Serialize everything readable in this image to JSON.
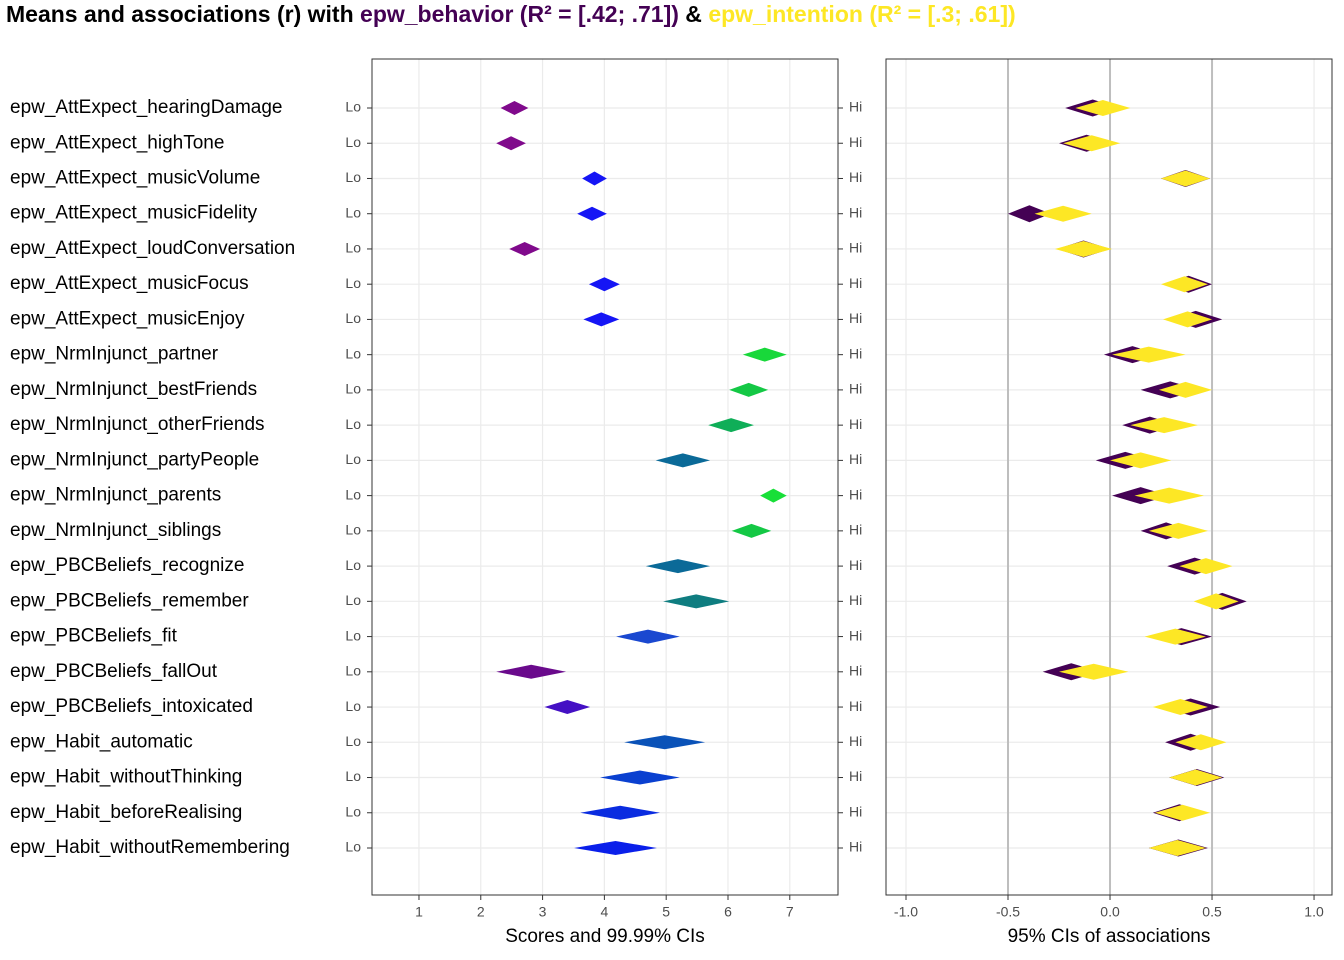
{
  "title_prefix": "Means and associations (r) with ",
  "title_joiner": " & ",
  "chart_data": [
    {
      "type": "diamond",
      "xlabel": "Scores and 99.99% CIs",
      "anchor_labels": [
        "Lo",
        "Hi"
      ],
      "grid": true,
      "categories": [
        "epw_AttExpect_hearingDamage",
        "epw_AttExpect_highTone",
        "epw_AttExpect_musicVolume",
        "epw_AttExpect_musicFidelity",
        "epw_AttExpect_loudConversation",
        "epw_AttExpect_musicFocus",
        "epw_AttExpect_musicEnjoy",
        "epw_NrmInjunct_partner",
        "epw_NrmInjunct_bestFriends",
        "epw_NrmInjunct_otherFriends",
        "epw_NrmInjunct_partyPeople",
        "epw_NrmInjunct_parents",
        "epw_NrmInjunct_siblings",
        "epw_PBCBeliefs_recognize",
        "epw_PBCBeliefs_remember",
        "epw_PBCBeliefs_fit",
        "epw_PBCBeliefs_fallOut",
        "epw_PBCBeliefs_intoxicated",
        "epw_Habit_automatic",
        "epw_Habit_withoutThinking",
        "epw_Habit_beforeRealising",
        "epw_Habit_withoutRemembering"
      ],
      "values": [
        2.54,
        2.49,
        3.85,
        3.8,
        2.7,
        3.99,
        3.95,
        6.6,
        6.34,
        6.05,
        5.27,
        6.73,
        6.37,
        5.19,
        5.48,
        4.71,
        2.81,
        3.39,
        4.96,
        4.58,
        4.25,
        4.17
      ],
      "lower": [
        2.32,
        2.25,
        3.64,
        3.56,
        2.46,
        3.75,
        3.66,
        6.24,
        6.02,
        5.68,
        4.83,
        6.52,
        6.06,
        4.67,
        4.95,
        4.19,
        2.25,
        3.03,
        4.32,
        3.93,
        3.61,
        3.51
      ],
      "upper": [
        2.77,
        2.73,
        4.04,
        4.04,
        2.96,
        4.25,
        4.24,
        6.95,
        6.65,
        6.42,
        5.71,
        6.95,
        6.7,
        5.71,
        6.02,
        5.22,
        3.38,
        3.77,
        5.63,
        5.22,
        4.9,
        4.85
      ],
      "colors": [
        "#800a8c",
        "#800a8c",
        "#1515f5",
        "#1515f5",
        "#800a8c",
        "#1515f5",
        "#1515f5",
        "#18d83a",
        "#14c845",
        "#0fae58",
        "#0b6a98",
        "#18df38",
        "#14c845",
        "#0b6a98",
        "#0f7d80",
        "#1a48d0",
        "#6a0a8c",
        "#4410c4",
        "#0a52b8",
        "#0a40d0",
        "#0a2ce0",
        "#0a1fea"
      ],
      "xlim": [
        0.24,
        7.78
      ],
      "xticks": [
        1,
        2,
        3,
        4,
        5,
        6,
        7
      ]
    },
    {
      "type": "diamond",
      "xlabel": "95% CIs of associations",
      "grid": true,
      "reference_lines": [
        -0.5,
        0,
        0.5
      ],
      "series": [
        {
          "name": "epw_behavior (R² = [.42; .71])",
          "color": "#440154",
          "values": [
            -0.08,
            -0.11,
            0.37,
            -0.4,
            -0.13,
            0.39,
            0.42,
            0.11,
            0.29,
            0.2,
            0.07,
            0.15,
            0.27,
            0.42,
            0.55,
            0.35,
            -0.19,
            0.4,
            0.4,
            0.43,
            0.34,
            0.34
          ],
          "lower": [
            -0.22,
            -0.25,
            0.25,
            -0.5,
            -0.26,
            0.27,
            0.29,
            -0.03,
            0.15,
            0.06,
            -0.07,
            0.01,
            0.15,
            0.28,
            0.43,
            0.2,
            -0.33,
            0.25,
            0.27,
            0.29,
            0.21,
            0.19
          ],
          "upper": [
            0.05,
            0.02,
            0.49,
            -0.29,
            0,
            0.5,
            0.55,
            0.25,
            0.44,
            0.33,
            0.22,
            0.29,
            0.4,
            0.55,
            0.67,
            0.5,
            -0.05,
            0.54,
            0.52,
            0.56,
            0.47,
            0.48
          ]
        },
        {
          "name": "epw_intention (R² = [.3; .61])",
          "color": "#fde725",
          "values": [
            -0.04,
            -0.09,
            0.37,
            -0.23,
            -0.13,
            0.36,
            0.38,
            0.19,
            0.37,
            0.26,
            0.15,
            0.29,
            0.33,
            0.47,
            0.52,
            0.32,
            -0.08,
            0.34,
            0.45,
            0.42,
            0.35,
            0.33
          ],
          "lower": [
            -0.17,
            -0.23,
            0.25,
            -0.37,
            -0.27,
            0.25,
            0.26,
            0.01,
            0.24,
            0.1,
            0,
            0.12,
            0.19,
            0.34,
            0.41,
            0.17,
            -0.25,
            0.21,
            0.32,
            0.29,
            0.22,
            0.19
          ],
          "upper": [
            0.1,
            0.05,
            0.49,
            -0.09,
            0.01,
            0.48,
            0.5,
            0.37,
            0.5,
            0.43,
            0.3,
            0.46,
            0.48,
            0.6,
            0.63,
            0.47,
            0.09,
            0.48,
            0.57,
            0.55,
            0.49,
            0.47
          ]
        }
      ],
      "xlim": [
        -1.098,
        1.088
      ],
      "xticks": [
        {
          "value": -1,
          "label": "-1.0"
        },
        {
          "value": -0.5,
          "label": "-0.5"
        },
        {
          "value": 0,
          "label": "0.0"
        },
        {
          "value": 0.5,
          "label": "0.5"
        },
        {
          "value": 1,
          "label": "1.0"
        }
      ]
    }
  ]
}
